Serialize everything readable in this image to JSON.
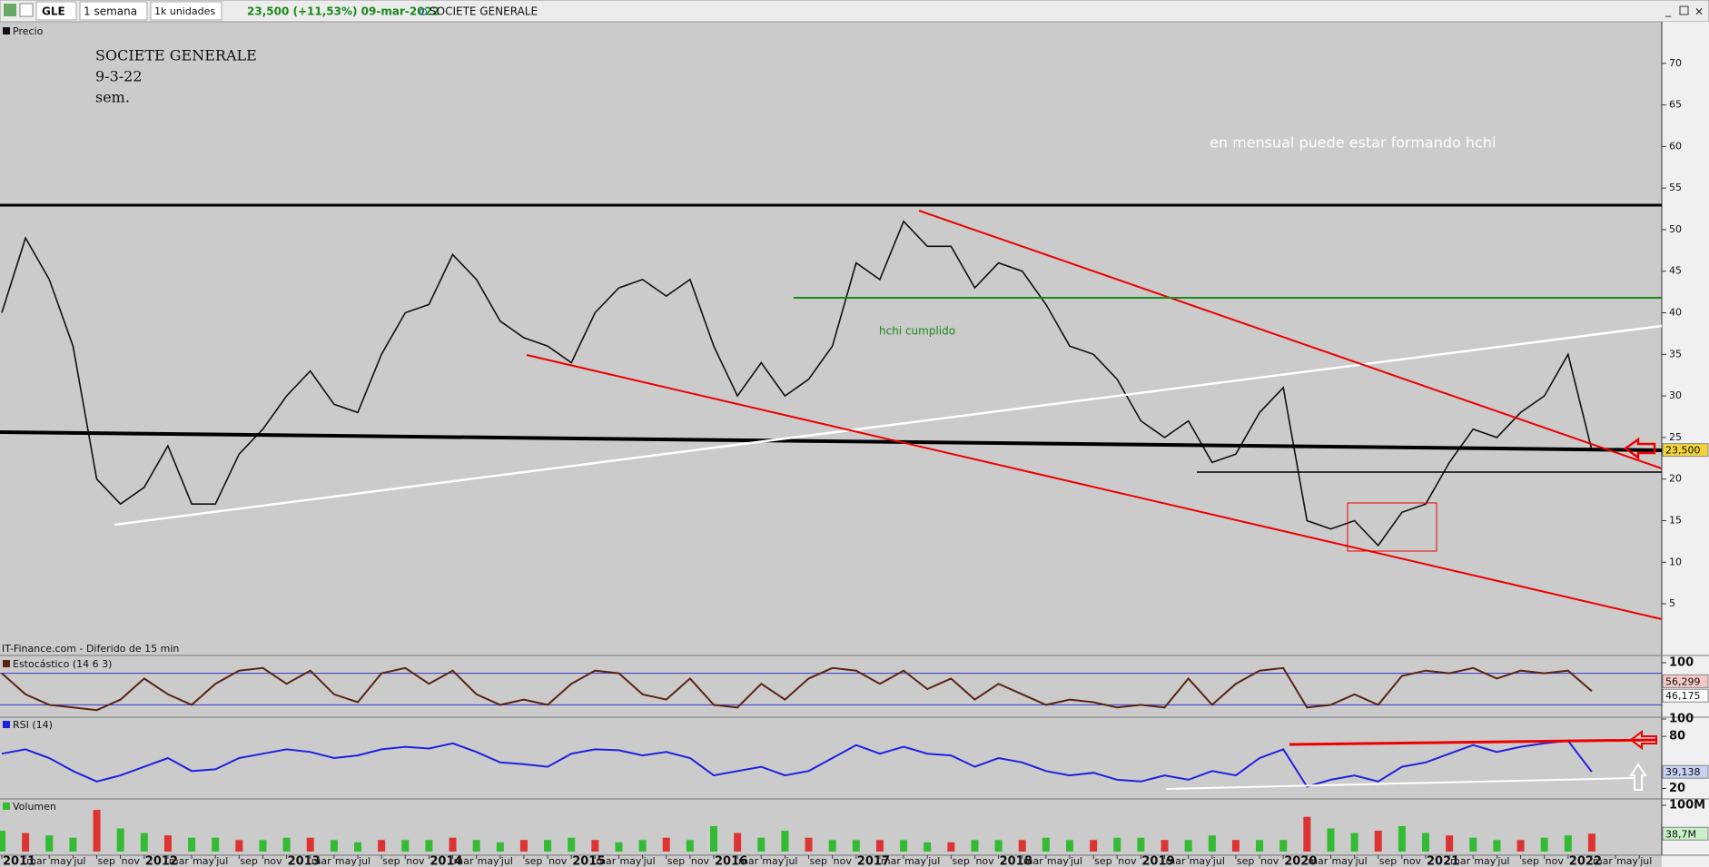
{
  "toolbar": {
    "symbol": "GLE",
    "period": "1 semana",
    "units": "1k unidades",
    "quote": "23,500 (+11,53%) 09-mar-2022",
    "name": "SOCIETE GENERALE"
  },
  "source": "IT-Finance.com - Diferido de 15 min",
  "chart_data": [
    {
      "type": "line",
      "title": "Precio",
      "color": "#111111",
      "annotations": [
        "SOCIETE GENERALE",
        "9-3-22",
        "sem.",
        "en mensual puede estar formando hchi",
        "hchi cumplido"
      ],
      "x": [
        "2011-01",
        "2011-03",
        "2011-05",
        "2011-07",
        "2011-09",
        "2011-11",
        "2012-01",
        "2012-03",
        "2012-05",
        "2012-07",
        "2012-09",
        "2012-11",
        "2013-01",
        "2013-03",
        "2013-05",
        "2013-07",
        "2013-09",
        "2013-11",
        "2014-01",
        "2014-03",
        "2014-05",
        "2014-07",
        "2014-09",
        "2014-11",
        "2015-01",
        "2015-03",
        "2015-05",
        "2015-07",
        "2015-09",
        "2015-11",
        "2016-01",
        "2016-03",
        "2016-05",
        "2016-07",
        "2016-09",
        "2016-11",
        "2017-01",
        "2017-03",
        "2017-05",
        "2017-07",
        "2017-09",
        "2017-11",
        "2018-01",
        "2018-03",
        "2018-05",
        "2018-07",
        "2018-09",
        "2018-11",
        "2019-01",
        "2019-03",
        "2019-05",
        "2019-07",
        "2019-09",
        "2019-11",
        "2020-01",
        "2020-03",
        "2020-05",
        "2020-07",
        "2020-09",
        "2020-11",
        "2021-01",
        "2021-03",
        "2021-05",
        "2021-07",
        "2021-09",
        "2021-11",
        "2022-01",
        "2022-03"
      ],
      "values": [
        40,
        49,
        44,
        36,
        20,
        17,
        19,
        24,
        17,
        17,
        23,
        26,
        30,
        33,
        29,
        28,
        35,
        40,
        41,
        47,
        44,
        39,
        37,
        36,
        34,
        40,
        43,
        44,
        42,
        44,
        36,
        30,
        34,
        30,
        32,
        36,
        46,
        44,
        51,
        48,
        48,
        43,
        46,
        45,
        41,
        36,
        35,
        32,
        27,
        25,
        27,
        22,
        23,
        28,
        31,
        15,
        14,
        15,
        12,
        16,
        17,
        22,
        26,
        25,
        28,
        30,
        35,
        23.5
      ],
      "ylim": [
        -1,
        75
      ],
      "yticks": [
        5,
        10,
        15,
        20,
        25,
        30,
        35,
        40,
        45,
        50,
        55,
        60,
        65,
        70
      ],
      "last": {
        "value": 23.5,
        "label": "23,500"
      }
    },
    {
      "type": "line",
      "title": "Estocástico (14 6 3)",
      "color": "#5a2414",
      "x": [
        "2011-01",
        "2011-03",
        "2011-05",
        "2011-07",
        "2011-09",
        "2011-11",
        "2012-01",
        "2012-03",
        "2012-05",
        "2012-07",
        "2012-09",
        "2012-11",
        "2013-01",
        "2013-03",
        "2013-05",
        "2013-07",
        "2013-09",
        "2013-11",
        "2014-01",
        "2014-03",
        "2014-05",
        "2014-07",
        "2014-09",
        "2014-11",
        "2015-01",
        "2015-03",
        "2015-05",
        "2015-07",
        "2015-09",
        "2015-11",
        "2016-01",
        "2016-03",
        "2016-05",
        "2016-07",
        "2016-09",
        "2016-11",
        "2017-01",
        "2017-03",
        "2017-05",
        "2017-07",
        "2017-09",
        "2017-11",
        "2018-01",
        "2018-03",
        "2018-05",
        "2018-07",
        "2018-09",
        "2018-11",
        "2019-01",
        "2019-03",
        "2019-05",
        "2019-07",
        "2019-09",
        "2019-11",
        "2020-01",
        "2020-03",
        "2020-05",
        "2020-07",
        "2020-09",
        "2020-11",
        "2021-01",
        "2021-03",
        "2021-05",
        "2021-07",
        "2021-09",
        "2021-11",
        "2022-01",
        "2022-03"
      ],
      "values": [
        80,
        40,
        20,
        15,
        10,
        30,
        70,
        40,
        20,
        60,
        85,
        90,
        60,
        85,
        40,
        25,
        80,
        90,
        60,
        85,
        40,
        20,
        30,
        20,
        60,
        85,
        80,
        40,
        30,
        70,
        20,
        15,
        60,
        30,
        70,
        90,
        85,
        60,
        85,
        50,
        70,
        30,
        60,
        40,
        20,
        30,
        25,
        15,
        20,
        15,
        70,
        20,
        60,
        85,
        90,
        15,
        20,
        40,
        20,
        75,
        85,
        80,
        90,
        70,
        85,
        80,
        85,
        46.175
      ],
      "ylim": [
        0,
        100
      ],
      "yticks": [
        100
      ],
      "levels": [
        80,
        20
      ],
      "last": [
        {
          "value": 56.299,
          "label": "56,299"
        },
        {
          "value": 46.175,
          "label": "46,175"
        }
      ]
    },
    {
      "type": "line",
      "title": "RSI (14)",
      "color": "#2020e0",
      "x": [
        "2011-01",
        "2011-03",
        "2011-05",
        "2011-07",
        "2011-09",
        "2011-11",
        "2012-01",
        "2012-03",
        "2012-05",
        "2012-07",
        "2012-09",
        "2012-11",
        "2013-01",
        "2013-03",
        "2013-05",
        "2013-07",
        "2013-09",
        "2013-11",
        "2014-01",
        "2014-03",
        "2014-05",
        "2014-07",
        "2014-09",
        "2014-11",
        "2015-01",
        "2015-03",
        "2015-05",
        "2015-07",
        "2015-09",
        "2015-11",
        "2016-01",
        "2016-03",
        "2016-05",
        "2016-07",
        "2016-09",
        "2016-11",
        "2017-01",
        "2017-03",
        "2017-05",
        "2017-07",
        "2017-09",
        "2017-11",
        "2018-01",
        "2018-03",
        "2018-05",
        "2018-07",
        "2018-09",
        "2018-11",
        "2019-01",
        "2019-03",
        "2019-05",
        "2019-07",
        "2019-09",
        "2019-11",
        "2020-01",
        "2020-03",
        "2020-05",
        "2020-07",
        "2020-09",
        "2020-11",
        "2021-01",
        "2021-03",
        "2021-05",
        "2021-07",
        "2021-09",
        "2021-11",
        "2022-01",
        "2022-03"
      ],
      "values": [
        60,
        65,
        55,
        40,
        28,
        35,
        45,
        55,
        40,
        42,
        55,
        60,
        65,
        62,
        55,
        58,
        65,
        68,
        66,
        72,
        62,
        50,
        48,
        45,
        60,
        65,
        64,
        58,
        62,
        55,
        35,
        40,
        45,
        35,
        40,
        55,
        70,
        60,
        68,
        60,
        58,
        45,
        55,
        50,
        40,
        35,
        38,
        30,
        28,
        35,
        30,
        40,
        35,
        55,
        65,
        22,
        30,
        35,
        28,
        45,
        50,
        60,
        70,
        62,
        68,
        72,
        75,
        39.138
      ],
      "ylim": [
        10,
        100
      ],
      "yticks": [
        20,
        80,
        100
      ],
      "last": {
        "value": 39.138,
        "label": "39,138"
      }
    },
    {
      "type": "bar",
      "title": "Volumen",
      "color": "#33bb33",
      "x": [
        "2011-01",
        "2011-03",
        "2011-05",
        "2011-07",
        "2011-09",
        "2011-11",
        "2012-01",
        "2012-03",
        "2012-05",
        "2012-07",
        "2012-09",
        "2012-11",
        "2013-01",
        "2013-03",
        "2013-05",
        "2013-07",
        "2013-09",
        "2013-11",
        "2014-01",
        "2014-03",
        "2014-05",
        "2014-07",
        "2014-09",
        "2014-11",
        "2015-01",
        "2015-03",
        "2015-05",
        "2015-07",
        "2015-09",
        "2015-11",
        "2016-01",
        "2016-03",
        "2016-05",
        "2016-07",
        "2016-09",
        "2016-11",
        "2017-01",
        "2017-03",
        "2017-05",
        "2017-07",
        "2017-09",
        "2017-11",
        "2018-01",
        "2018-03",
        "2018-05",
        "2018-07",
        "2018-09",
        "2018-11",
        "2019-01",
        "2019-03",
        "2019-05",
        "2019-07",
        "2019-09",
        "2019-11",
        "2020-01",
        "2020-03",
        "2020-05",
        "2020-07",
        "2020-09",
        "2020-11",
        "2021-01",
        "2021-03",
        "2021-05",
        "2021-07",
        "2021-09",
        "2021-11",
        "2022-01",
        "2022-03"
      ],
      "values": [
        45,
        40,
        35,
        30,
        90,
        50,
        40,
        35,
        30,
        30,
        25,
        25,
        30,
        30,
        25,
        20,
        25,
        25,
        25,
        30,
        25,
        20,
        25,
        25,
        30,
        25,
        20,
        25,
        30,
        25,
        55,
        40,
        30,
        45,
        30,
        25,
        25,
        25,
        25,
        20,
        20,
        25,
        25,
        25,
        30,
        25,
        25,
        30,
        30,
        25,
        25,
        35,
        25,
        25,
        25,
        75,
        50,
        40,
        45,
        55,
        40,
        35,
        30,
        25,
        25,
        30,
        35,
        38.7
      ],
      "ylim": [
        0,
        100
      ],
      "yticks": [
        {
          "value": 100,
          "label": "100M"
        }
      ],
      "last": {
        "value": 38.7,
        "label": "38,7M"
      },
      "xticks": [
        {
          "value": "2011-01",
          "label": "2011"
        },
        {
          "value": "2011-03",
          "label": "mar"
        },
        {
          "value": "2011-05",
          "label": "may"
        },
        {
          "value": "2011-07",
          "label": "jul"
        },
        {
          "value": "2011-09",
          "label": "sep"
        },
        {
          "value": "2011-11",
          "label": "nov"
        },
        {
          "value": "2012-01",
          "label": "2012"
        },
        {
          "value": "2012-03",
          "label": "mar"
        },
        {
          "value": "2012-05",
          "label": "may"
        },
        {
          "value": "2012-07",
          "label": "jul"
        },
        {
          "value": "2012-09",
          "label": "sep"
        },
        {
          "value": "2012-11",
          "label": "nov"
        },
        {
          "value": "2013-01",
          "label": "2013"
        },
        {
          "value": "2013-03",
          "label": "mar"
        },
        {
          "value": "2013-05",
          "label": "may"
        },
        {
          "value": "2013-07",
          "label": "jul"
        },
        {
          "value": "2013-09",
          "label": "sep"
        },
        {
          "value": "2013-11",
          "label": "nov"
        },
        {
          "value": "2014-01",
          "label": "2014"
        },
        {
          "value": "2014-03",
          "label": "mar"
        },
        {
          "value": "2014-05",
          "label": "may"
        },
        {
          "value": "2014-07",
          "label": "jul"
        },
        {
          "value": "2014-09",
          "label": "sep"
        },
        {
          "value": "2014-11",
          "label": "nov"
        },
        {
          "value": "2015-01",
          "label": "2015"
        },
        {
          "value": "2015-03",
          "label": "mar"
        },
        {
          "value": "2015-05",
          "label": "may"
        },
        {
          "value": "2015-07",
          "label": "jul"
        },
        {
          "value": "2015-09",
          "label": "sep"
        },
        {
          "value": "2015-11",
          "label": "nov"
        },
        {
          "value": "2016-01",
          "label": "2016"
        },
        {
          "value": "2016-03",
          "label": "mar"
        },
        {
          "value": "2016-05",
          "label": "may"
        },
        {
          "value": "2016-07",
          "label": "jul"
        },
        {
          "value": "2016-09",
          "label": "sep"
        },
        {
          "value": "2016-11",
          "label": "nov"
        },
        {
          "value": "2017-01",
          "label": "2017"
        },
        {
          "value": "2017-03",
          "label": "mar"
        },
        {
          "value": "2017-05",
          "label": "may"
        },
        {
          "value": "2017-07",
          "label": "jul"
        },
        {
          "value": "2017-09",
          "label": "sep"
        },
        {
          "value": "2017-11",
          "label": "nov"
        },
        {
          "value": "2018-01",
          "label": "2018"
        },
        {
          "value": "2018-03",
          "label": "mar"
        },
        {
          "value": "2018-05",
          "label": "may"
        },
        {
          "value": "2018-07",
          "label": "jul"
        },
        {
          "value": "2018-09",
          "label": "sep"
        },
        {
          "value": "2018-11",
          "label": "nov"
        },
        {
          "value": "2019-01",
          "label": "2019"
        },
        {
          "value": "2019-03",
          "label": "mar"
        },
        {
          "value": "2019-05",
          "label": "may"
        },
        {
          "value": "2019-07",
          "label": "jul"
        },
        {
          "value": "2019-09",
          "label": "sep"
        },
        {
          "value": "2019-11",
          "label": "nov"
        },
        {
          "value": "2020-01",
          "label": "2020"
        },
        {
          "value": "2020-03",
          "label": "mar"
        },
        {
          "value": "2020-05",
          "label": "may"
        },
        {
          "value": "2020-07",
          "label": "jul"
        },
        {
          "value": "2020-09",
          "label": "sep"
        },
        {
          "value": "2020-11",
          "label": "nov"
        },
        {
          "value": "2021-01",
          "label": "2021"
        },
        {
          "value": "2021-03",
          "label": "mar"
        },
        {
          "value": "2021-05",
          "label": "may"
        },
        {
          "value": "2021-07",
          "label": "jul"
        },
        {
          "value": "2021-09",
          "label": "sep"
        },
        {
          "value": "2021-11",
          "label": "nov"
        },
        {
          "value": "2022-01",
          "label": "2022"
        },
        {
          "value": "2022-03",
          "label": "mar"
        },
        {
          "value": "2022-05",
          "label": "may"
        },
        {
          "value": "2022-07",
          "label": "jul"
        }
      ]
    }
  ]
}
